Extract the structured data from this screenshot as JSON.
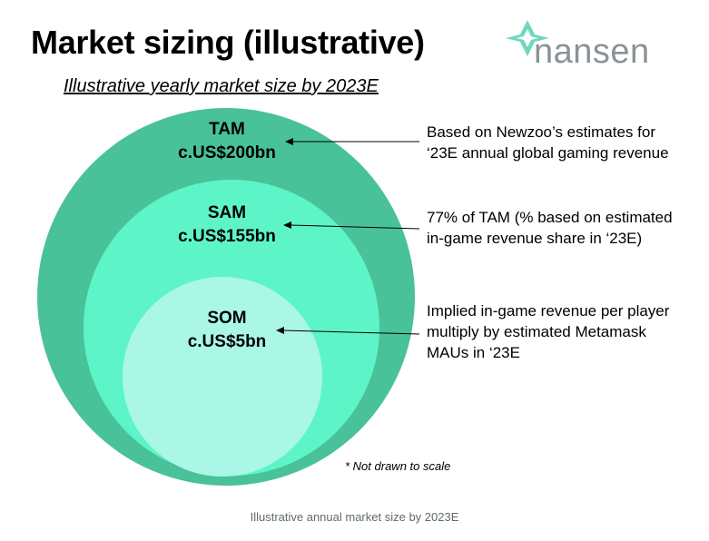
{
  "header": {
    "title": "Market sizing (illustrative)",
    "subtitle": "Illustrative yearly market size by 2023E"
  },
  "logo": {
    "text": "nansen",
    "icon": "nansen-logo-icon",
    "color": "#5fd3b9"
  },
  "circles": [
    {
      "name": "TAM",
      "value": "c.US$200bn",
      "color": "#49c199",
      "note": [
        "Based on Newzoo’s estimates for",
        "‘23E annual global gaming revenue"
      ]
    },
    {
      "name": "SAM",
      "value": "c.US$155bn",
      "color": "#5df5c8",
      "note": [
        "77% of TAM (% based on estimated",
        "in-game revenue share in ‘23E)"
      ]
    },
    {
      "name": "SOM",
      "value": "c.US$5bn",
      "color": "#aaf7e6",
      "note": [
        "Implied in-game revenue per player",
        "multiply by estimated Metamask",
        "MAUs in ‘23E"
      ]
    }
  ],
  "footnote": "* Not drawn to scale",
  "caption": "Illustrative annual market size by 2023E"
}
